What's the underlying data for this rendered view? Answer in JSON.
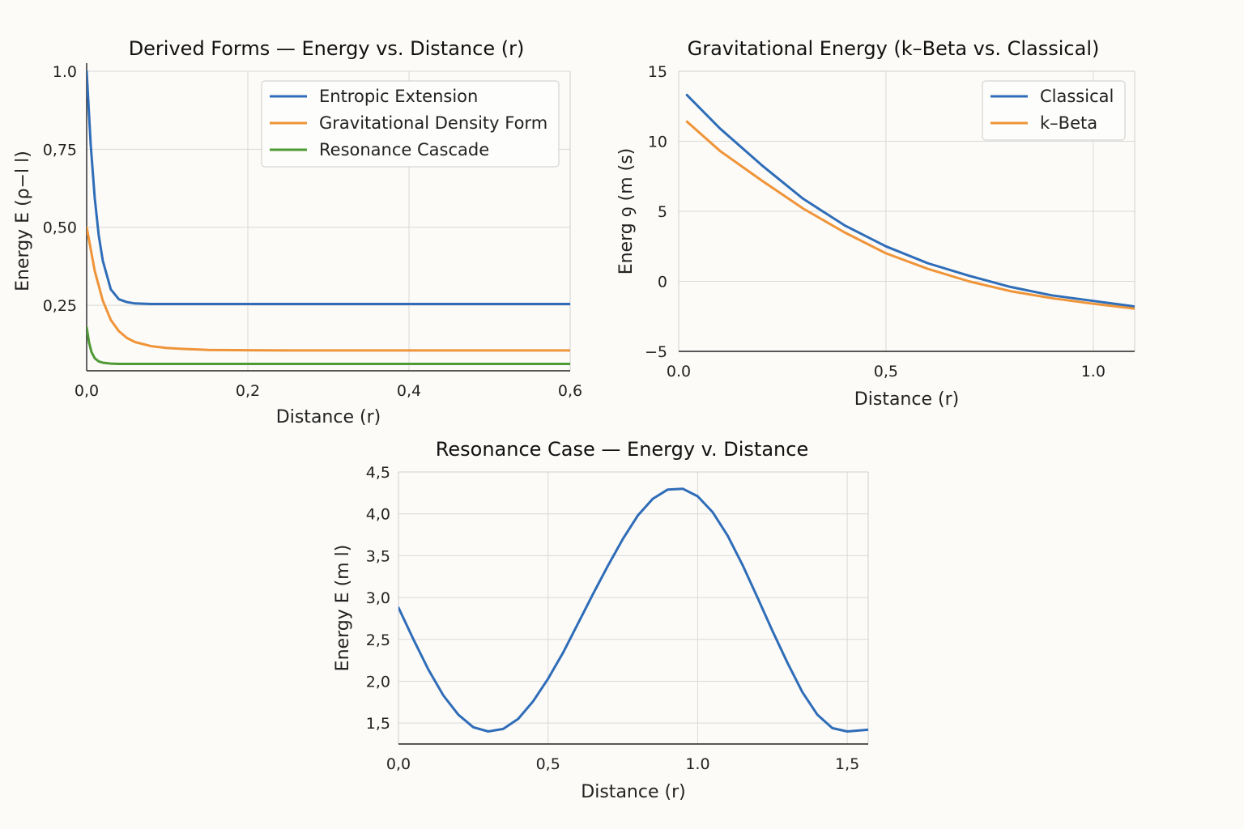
{
  "colors": {
    "blue": "#2f6db8",
    "orange": "#ef9438",
    "green": "#4e9a35"
  },
  "chart_data": [
    {
      "type": "line",
      "title": "Derived Forms — Energy vs. Distance (r)",
      "xlabel": "Distance (r)",
      "ylabel": "Energy E (ρ−l l)",
      "xlim": [
        0,
        0.6
      ],
      "ylim": [
        0.04,
        1.0
      ],
      "xticks": [
        0,
        0.2,
        0.4,
        0.6
      ],
      "xtick_labels": [
        "0,0",
        "0,2",
        "0,4",
        "0,6"
      ],
      "yticks": [
        0.25,
        0.5,
        0.75,
        1.0
      ],
      "ytick_labels": [
        "0,25",
        "0,50",
        "0,75",
        "1.0"
      ],
      "grid": true,
      "legend": "top-right",
      "series": [
        {
          "name": "Entropic Extension",
          "color": "#2f6db8",
          "x": [
            0,
            0.005,
            0.01,
            0.015,
            0.02,
            0.03,
            0.04,
            0.05,
            0.06,
            0.08,
            0.1,
            0.15,
            0.2,
            0.3,
            0.4,
            0.5,
            0.6
          ],
          "y": [
            1.0,
            0.765,
            0.593,
            0.474,
            0.393,
            0.301,
            0.269,
            0.26,
            0.256,
            0.254,
            0.254,
            0.254,
            0.254,
            0.254,
            0.254,
            0.254,
            0.254
          ]
        },
        {
          "name": "Gravitational Density Form",
          "color": "#ef9438",
          "x": [
            0,
            0.01,
            0.02,
            0.03,
            0.04,
            0.05,
            0.06,
            0.08,
            0.1,
            0.12,
            0.15,
            0.2,
            0.25,
            0.3,
            0.4,
            0.5,
            0.6
          ],
          "y": [
            0.5,
            0.36,
            0.265,
            0.203,
            0.167,
            0.145,
            0.132,
            0.119,
            0.113,
            0.11,
            0.107,
            0.106,
            0.105,
            0.105,
            0.105,
            0.105,
            0.105
          ]
        },
        {
          "name": "Resonance Cascade",
          "color": "#4e9a35",
          "x": [
            0,
            0.003,
            0.006,
            0.01,
            0.015,
            0.02,
            0.03,
            0.04,
            0.05,
            0.1,
            0.2,
            0.3,
            0.4,
            0.5,
            0.6
          ],
          "y": [
            0.18,
            0.13,
            0.1,
            0.08,
            0.07,
            0.066,
            0.063,
            0.062,
            0.062,
            0.062,
            0.062,
            0.062,
            0.062,
            0.062,
            0.062
          ]
        }
      ]
    },
    {
      "type": "line",
      "title": "Gravitational Energy (k–Beta vs. Classical)",
      "xlabel": "Distance (r)",
      "ylabel": "Energ ꝯ (m (s)",
      "xlim": [
        0,
        1.1
      ],
      "ylim": [
        -5,
        15
      ],
      "xticks": [
        0,
        0.5,
        1.0
      ],
      "xtick_labels": [
        "0.0",
        "0,5",
        "1.0"
      ],
      "yticks": [
        -5,
        0,
        5,
        10,
        15
      ],
      "ytick_labels": [
        "−5",
        "0",
        "5",
        "10",
        "15"
      ],
      "grid": true,
      "legend": "top-right",
      "series": [
        {
          "name": "Classical",
          "color": "#2f6db8",
          "x": [
            0.02,
            0.1,
            0.2,
            0.3,
            0.4,
            0.5,
            0.6,
            0.7,
            0.8,
            0.9,
            1.0,
            1.1
          ],
          "y": [
            13.3,
            10.9,
            8.3,
            5.9,
            4.0,
            2.5,
            1.3,
            0.4,
            -0.4,
            -1.0,
            -1.4,
            -1.8
          ]
        },
        {
          "name": "k–Beta",
          "color": "#ef9438",
          "x": [
            0.02,
            0.1,
            0.2,
            0.3,
            0.4,
            0.5,
            0.6,
            0.7,
            0.8,
            0.9,
            1.0,
            1.1
          ],
          "y": [
            11.4,
            9.3,
            7.2,
            5.2,
            3.5,
            2.0,
            0.9,
            0.0,
            -0.7,
            -1.2,
            -1.6,
            -1.95
          ]
        }
      ]
    },
    {
      "type": "line",
      "title": "Resonance Case — Energy v. Distance",
      "xlabel": "Distance (r)",
      "ylabel": "Energy E (m l)",
      "xlim": [
        0,
        1.57
      ],
      "ylim": [
        1.25,
        4.5
      ],
      "xticks": [
        0,
        0.5,
        1.0,
        1.5
      ],
      "xtick_labels": [
        "0,0",
        "0,5",
        "1.0",
        "1,5"
      ],
      "yticks": [
        1.5,
        2.0,
        2.5,
        3.0,
        3.5,
        4.0,
        4.5
      ],
      "ytick_labels": [
        "1,5",
        "2,0",
        "2,5",
        "3,0",
        "3,5",
        "4,0",
        "4,5"
      ],
      "grid": true,
      "series": [
        {
          "name": "",
          "color": "#2f6db8",
          "x": [
            0,
            0.05,
            0.1,
            0.15,
            0.2,
            0.25,
            0.3,
            0.35,
            0.4,
            0.45,
            0.5,
            0.55,
            0.6,
            0.65,
            0.7,
            0.75,
            0.8,
            0.85,
            0.9,
            0.95,
            1.0,
            1.05,
            1.1,
            1.15,
            1.2,
            1.25,
            1.3,
            1.35,
            1.4,
            1.45,
            1.5,
            1.57
          ],
          "y": [
            2.88,
            2.5,
            2.14,
            1.83,
            1.6,
            1.45,
            1.4,
            1.43,
            1.55,
            1.76,
            2.03,
            2.34,
            2.69,
            3.04,
            3.38,
            3.7,
            3.98,
            4.18,
            4.29,
            4.3,
            4.21,
            4.02,
            3.74,
            3.39,
            3.0,
            2.6,
            2.22,
            1.87,
            1.6,
            1.44,
            1.4,
            1.42
          ]
        }
      ]
    }
  ]
}
